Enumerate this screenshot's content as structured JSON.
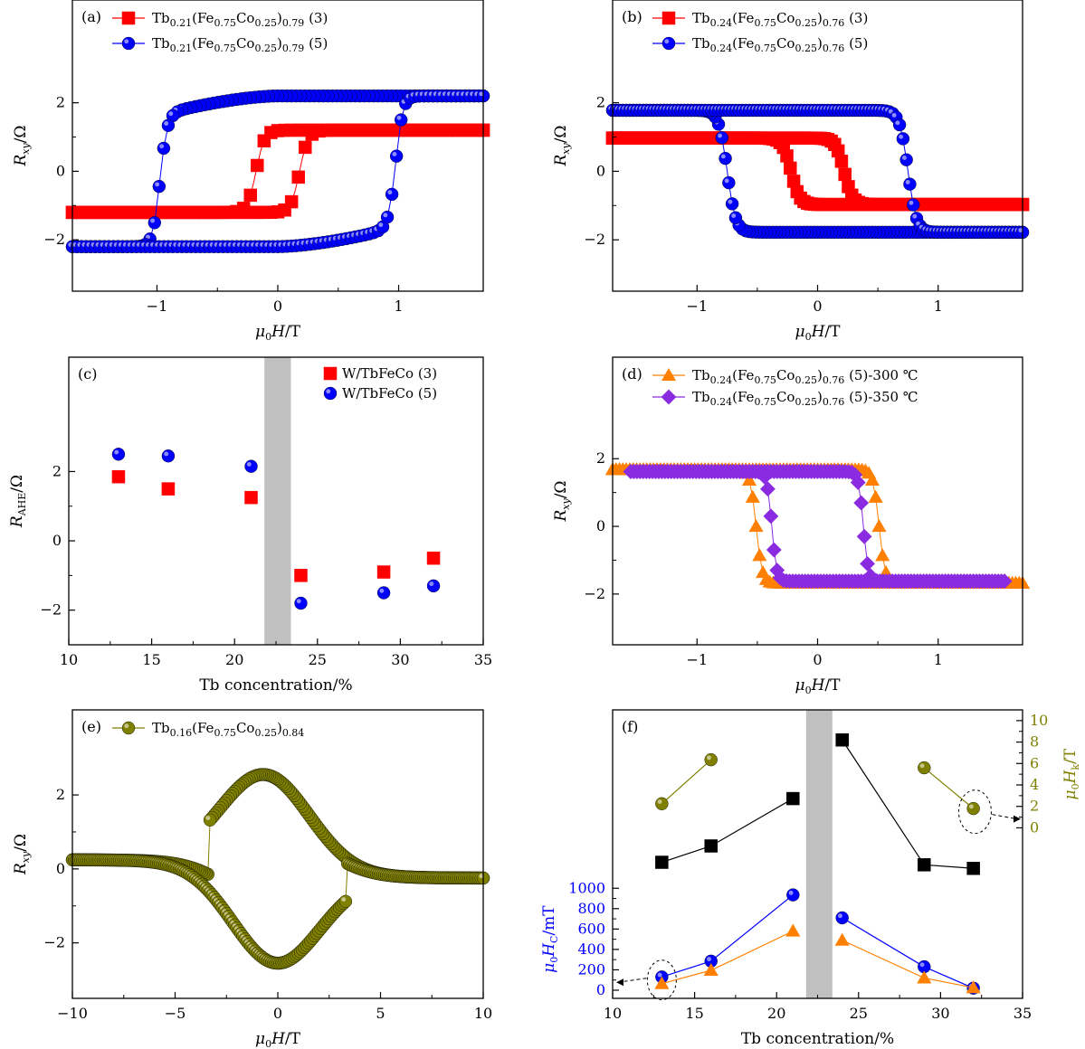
{
  "chart_data": [
    {
      "id": "a",
      "type": "scatter",
      "panel_label": "(a)",
      "xlabel": "μ0H/T",
      "ylabel": "Rxy/Ω",
      "xlim": [
        -1.7,
        1.7
      ],
      "ylim": [
        -3.5,
        5
      ],
      "xticks": [
        -1,
        0,
        1
      ],
      "xtick_labels": [
        "−1",
        "0",
        "1"
      ],
      "yticks": [
        -2,
        0,
        2
      ],
      "ytick_labels": [
        "−2",
        "0",
        "2"
      ],
      "legend_position": "top-left",
      "series": [
        {
          "name": "Tb0.21(Fe0.75Co0.25)0.79 (3)",
          "marker": "square",
          "color": "#ff0000",
          "loop": "rect",
          "Hc": 0.18,
          "Ms": 1.2,
          "Hs": 0.25,
          "width": 0.07
        },
        {
          "name": "Tb0.21(Fe0.75Co0.25)0.79 (5)",
          "marker": "circle",
          "color": "#0000ff",
          "loop": "tilted",
          "Hc": 0.97,
          "Ms": 2.2,
          "Hs": 1.1,
          "width": 0.06
        }
      ]
    },
    {
      "id": "b",
      "type": "scatter",
      "panel_label": "(b)",
      "xlabel": "μ0H/T",
      "ylabel": "Rxy/Ω",
      "xlim": [
        -1.7,
        1.7
      ],
      "ylim": [
        -3.5,
        5
      ],
      "xticks": [
        -1,
        0,
        1
      ],
      "xtick_labels": [
        "−1",
        "0",
        "1"
      ],
      "yticks": [
        -2,
        0,
        2
      ],
      "ytick_labels": [
        "−2",
        "0",
        "2"
      ],
      "legend_position": "top-left",
      "series": [
        {
          "name": "Tb0.24(Fe0.75Co0.25)0.76 (3)",
          "marker": "square",
          "color": "#ff0000",
          "loop": "inverse",
          "Hc": 0.22,
          "Ms": 0.97,
          "width": 0.07
        },
        {
          "name": "Tb0.24(Fe0.75Co0.25)0.76 (5)",
          "marker": "circle",
          "color": "#0000ff",
          "loop": "inverse",
          "Hc": 0.75,
          "Ms": 1.78,
          "width": 0.07
        }
      ]
    },
    {
      "id": "c",
      "type": "scatter",
      "panel_label": "(c)",
      "xlabel": "Tb concentration/%",
      "ylabel": "RAHE/Ω",
      "xlim": [
        10,
        35
      ],
      "ylim": [
        -3,
        5.3
      ],
      "xticks": [
        10,
        15,
        20,
        25,
        30,
        35
      ],
      "xtick_labels": [
        "10",
        "15",
        "20",
        "25",
        "30",
        "35"
      ],
      "yticks": [
        -2,
        0,
        2
      ],
      "ytick_labels": [
        "−2",
        "0",
        "2"
      ],
      "shaded_band": [
        21.8,
        23.4
      ],
      "legend_position": "top-right",
      "series": [
        {
          "name": "W/TbFeCo (3)",
          "marker": "square",
          "color": "#ff0000",
          "x": [
            13,
            16,
            21,
            24,
            29,
            32
          ],
          "y": [
            1.85,
            1.5,
            1.25,
            -1.0,
            -0.9,
            -0.5
          ]
        },
        {
          "name": "W/TbFeCo (5)",
          "marker": "circle",
          "color": "#0000ff",
          "x": [
            13,
            16,
            21,
            24,
            29,
            32
          ],
          "y": [
            2.5,
            2.45,
            2.15,
            -1.8,
            -1.5,
            -1.3
          ]
        }
      ]
    },
    {
      "id": "d",
      "type": "scatter",
      "panel_label": "(d)",
      "xlabel": "μ0H/T",
      "ylabel": "Rxy/Ω",
      "xlim": [
        -1.7,
        1.7
      ],
      "ylim": [
        -3.5,
        5
      ],
      "xticks": [
        -1,
        0,
        1
      ],
      "xtick_labels": [
        "−1",
        "0",
        "1"
      ],
      "yticks": [
        -2,
        0,
        2
      ],
      "ytick_labels": [
        "−2",
        "0",
        "2"
      ],
      "legend_position": "top-left",
      "series": [
        {
          "name": "Tb0.24(Fe0.75Co0.25)0.76 (5)-300 ℃",
          "marker": "triangle",
          "color": "#ff8000",
          "loop": "inverse",
          "Hc": 0.51,
          "Ms": 1.68,
          "width": 0.05,
          "xrange": 1.7
        },
        {
          "name": "Tb0.24(Fe0.75Co0.25)0.76 (5)-350 ℃",
          "marker": "diamond",
          "color": "#8a2be2",
          "loop": "inverse",
          "Hc": 0.38,
          "Ms": 1.62,
          "width": 0.04,
          "xrange": 1.55
        }
      ]
    },
    {
      "id": "e",
      "type": "scatter",
      "panel_label": "(e)",
      "xlabel": "μ0H/T",
      "ylabel": "Rxy/Ω",
      "xlim": [
        -10,
        10
      ],
      "ylim": [
        -3.5,
        4.3
      ],
      "xticks": [
        -10,
        -5,
        0,
        5,
        10
      ],
      "xtick_labels": [
        "−10",
        "−5",
        "0",
        "5",
        "10"
      ],
      "yticks": [
        -2,
        0,
        2
      ],
      "ytick_labels": [
        "−2",
        "0",
        "2"
      ],
      "legend_position": "top-left",
      "series": [
        {
          "name": "Tb0.16(Fe0.75Co0.25)0.84",
          "marker": "circle",
          "color": "#808000",
          "loop": "figure8",
          "Hc": 3.4,
          "peak": 2.55
        }
      ]
    },
    {
      "id": "f",
      "type": "line",
      "panel_label": "(f)",
      "xlabel": "Tb concentration/%",
      "ylabel_left": "μ0HC/mT",
      "ylabel_right": "μ0Hk/T",
      "xlim": [
        10,
        35
      ],
      "ylim_left": [
        -80,
        2750
      ],
      "ylim_right": [
        -15.9,
        11
      ],
      "xticks": [
        10,
        15,
        20,
        25,
        30,
        35
      ],
      "xtick_labels": [
        "10",
        "15",
        "20",
        "25",
        "30",
        "35"
      ],
      "yticks_left": [
        0,
        200,
        400,
        600,
        800,
        1000
      ],
      "ytick_labels_left": [
        "0",
        "200",
        "400",
        "600",
        "800",
        "1000"
      ],
      "yticks_right": [
        0,
        2,
        4,
        6,
        8,
        10
      ],
      "ytick_labels_right": [
        "0",
        "2",
        "4",
        "6",
        "8",
        "10"
      ],
      "shaded_band": [
        21.8,
        23.4
      ],
      "series": [
        {
          "axis": "right",
          "marker": "circle",
          "color": "#808000",
          "segments": [
            {
              "x": [
                13,
                16
              ],
              "y": [
                2.25,
                6.35
              ]
            },
            {
              "x": [
                29,
                32
              ],
              "y": [
                5.6,
                1.8
              ]
            }
          ]
        },
        {
          "axis": "left",
          "marker": "square",
          "color": "#000000",
          "segments": [
            {
              "x": [
                13,
                16,
                21
              ],
              "y": [
                1255,
                1415,
                1880
              ]
            },
            {
              "x": [
                24,
                29,
                32
              ],
              "y": [
                2455,
                1230,
                1195
              ]
            }
          ]
        },
        {
          "axis": "left",
          "marker": "circle",
          "color": "#0000ff",
          "segments": [
            {
              "x": [
                13,
                16,
                21
              ],
              "y": [
                130,
                285,
                935
              ]
            },
            {
              "x": [
                24,
                29,
                32
              ],
              "y": [
                710,
                230,
                20
              ]
            }
          ]
        },
        {
          "axis": "left",
          "marker": "triangle",
          "color": "#ff8000",
          "segments": [
            {
              "x": [
                13,
                16,
                21
              ],
              "y": [
                65,
                195,
                580
              ]
            },
            {
              "x": [
                24,
                29,
                32
              ],
              "y": [
                490,
                120,
                25
              ]
            }
          ]
        }
      ]
    }
  ]
}
